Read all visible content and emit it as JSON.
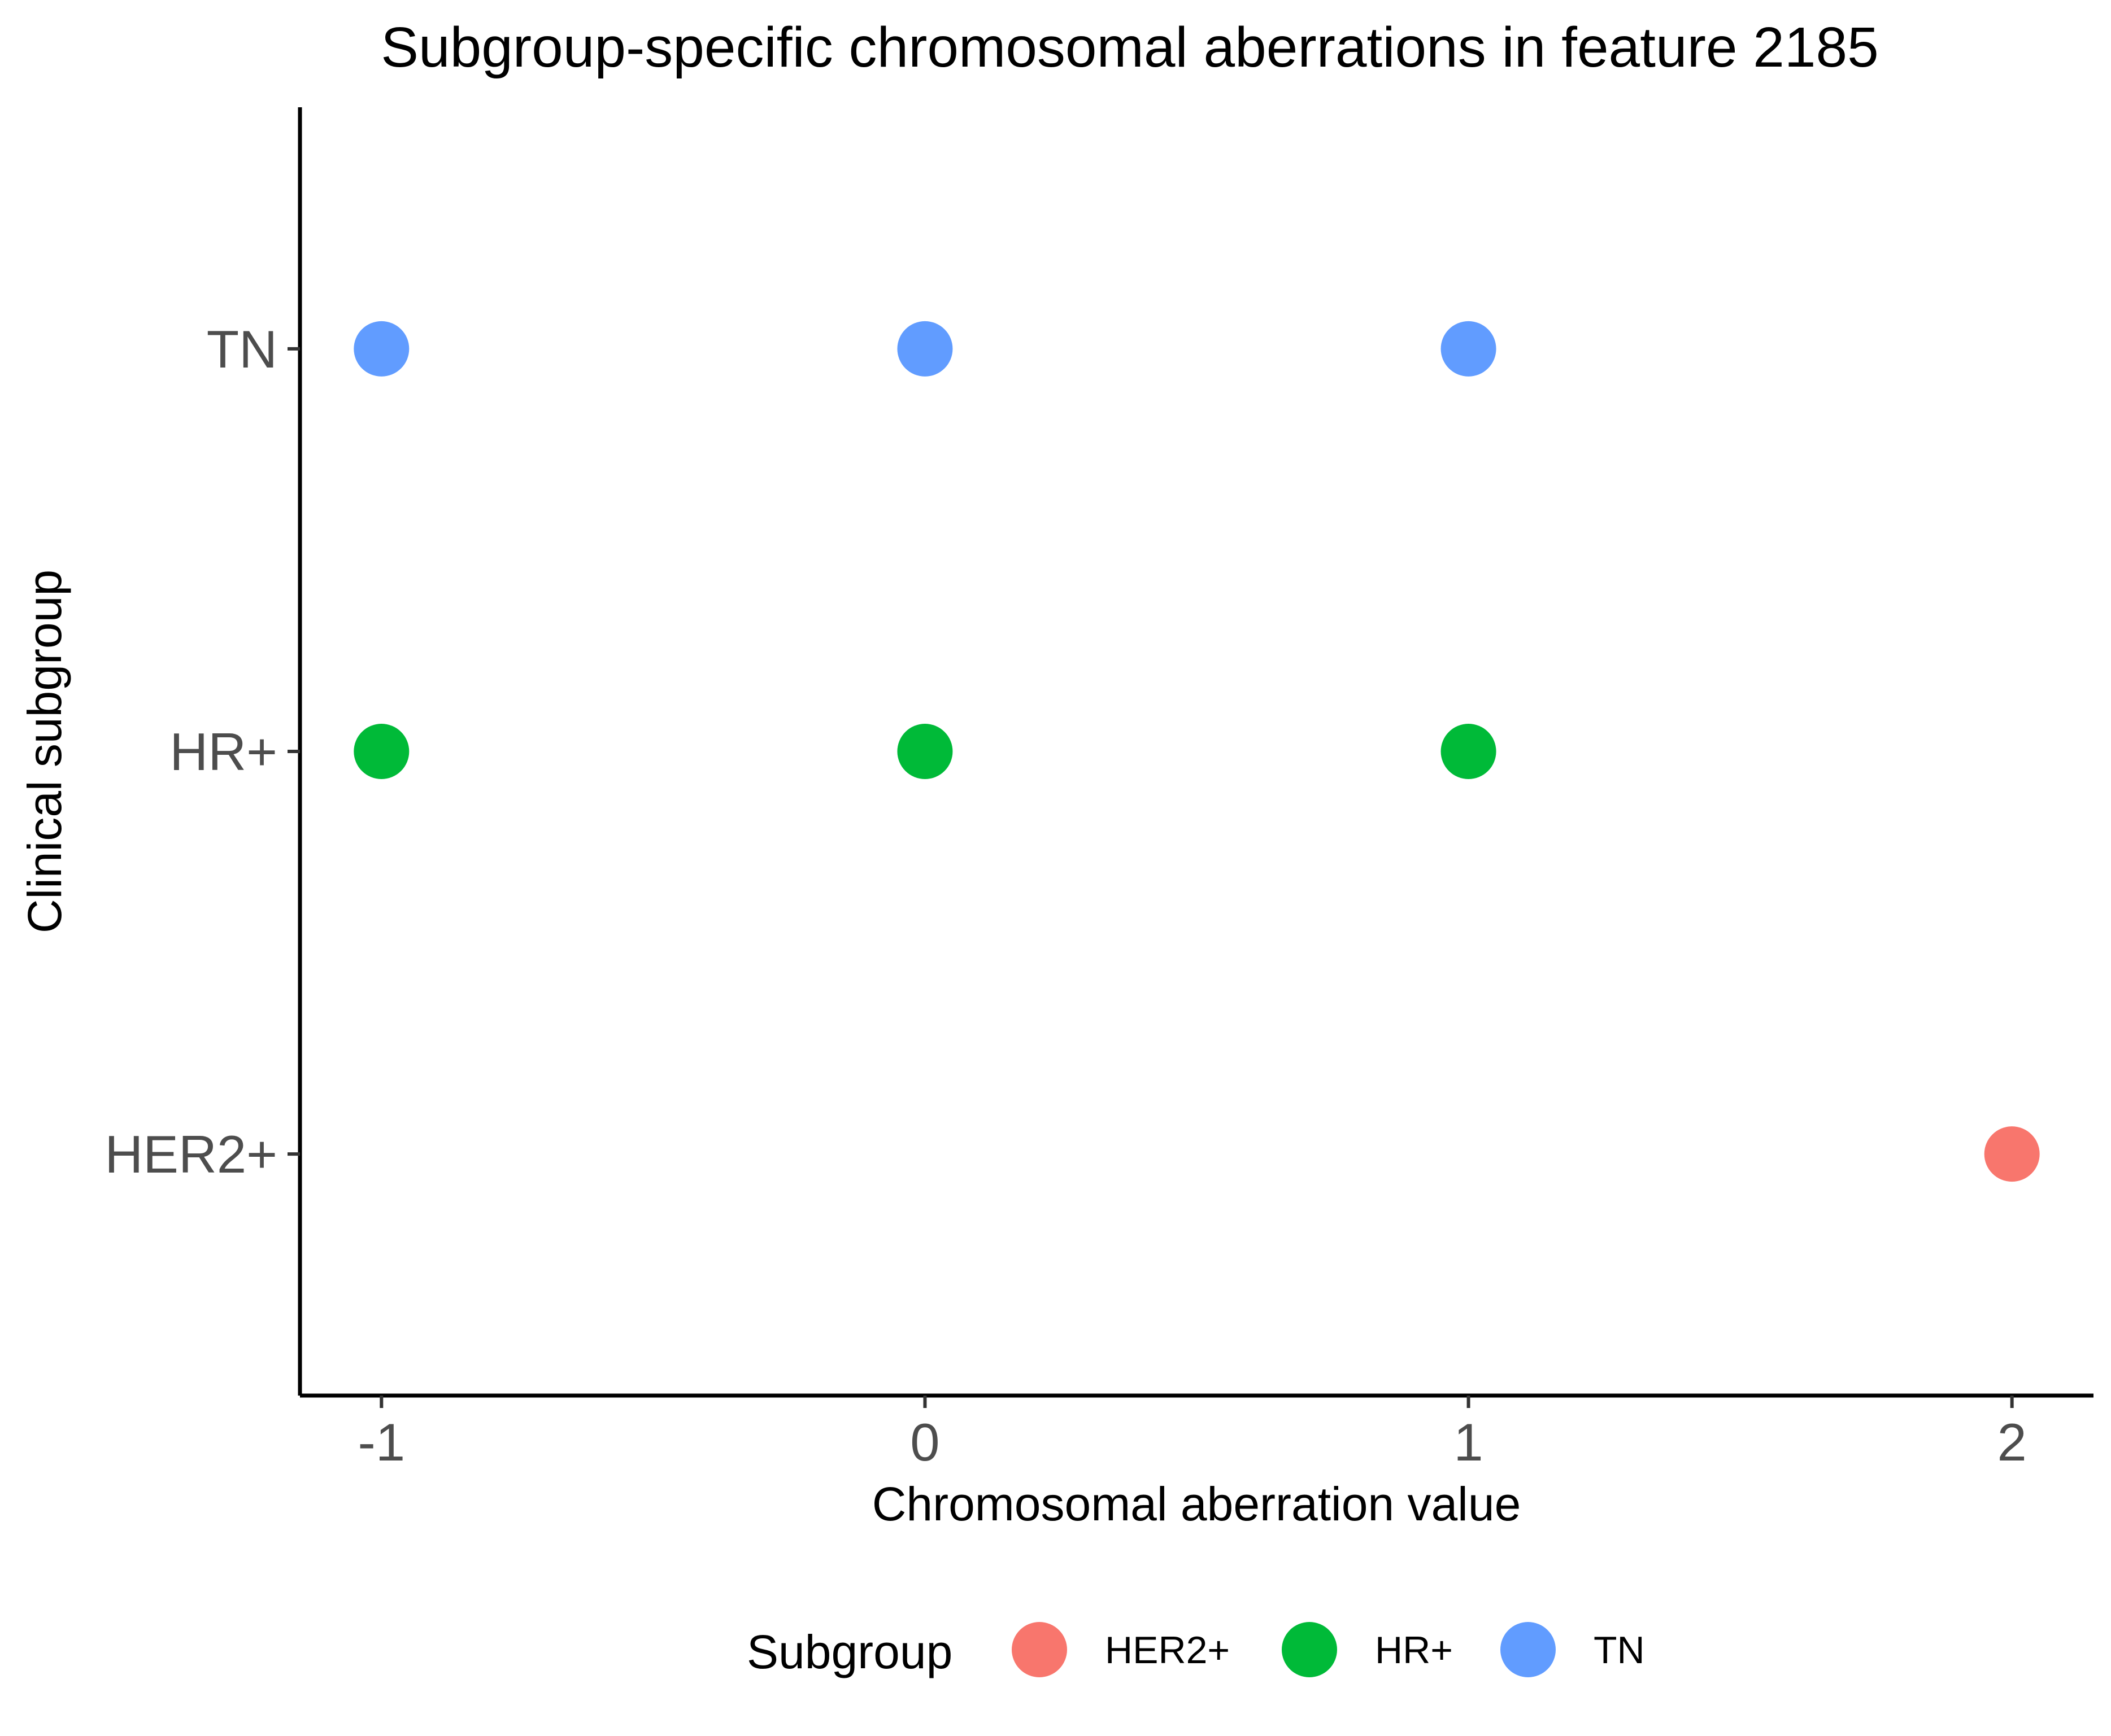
{
  "chart_data": {
    "type": "scatter",
    "title": "Subgroup-specific chromosomal aberrations in feature 2185",
    "xlabel": "Chromosomal aberration value",
    "ylabel": "Clinical subgroup",
    "x_ticks": [
      "-1",
      "0",
      "1",
      "2"
    ],
    "xlim": [
      -1.15,
      2.15
    ],
    "categories": [
      "HER2+",
      "HR+",
      "TN"
    ],
    "grid": false,
    "legend": {
      "title": "Subgroup",
      "position": "bottom"
    },
    "series": [
      {
        "name": "HER2+",
        "color": "#F8766D",
        "points": [
          {
            "x": 2,
            "y": "HER2+"
          }
        ]
      },
      {
        "name": "HR+",
        "color": "#00BA38",
        "points": [
          {
            "x": -1,
            "y": "HR+"
          },
          {
            "x": 0,
            "y": "HR+"
          },
          {
            "x": 1,
            "y": "HR+"
          }
        ]
      },
      {
        "name": "TN",
        "color": "#619CFF",
        "points": [
          {
            "x": -1,
            "y": "TN"
          },
          {
            "x": 0,
            "y": "TN"
          },
          {
            "x": 1,
            "y": "TN"
          }
        ]
      }
    ]
  }
}
